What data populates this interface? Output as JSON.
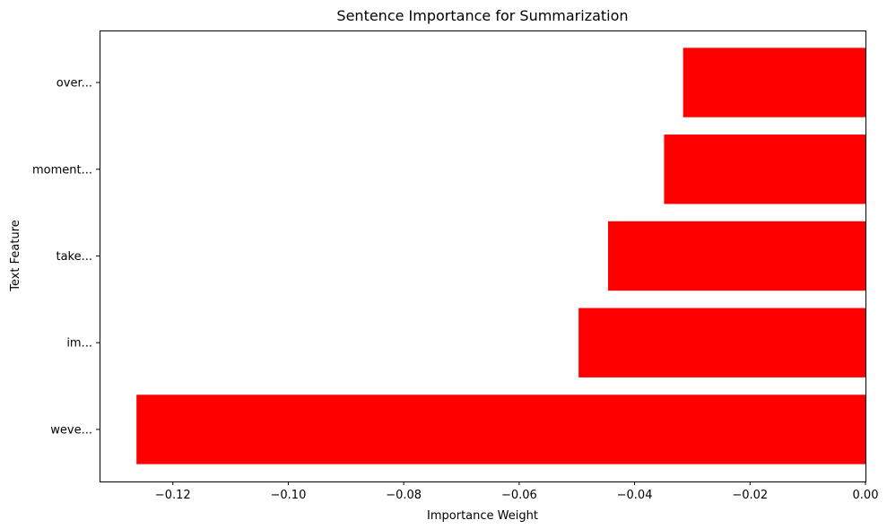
{
  "chart_data": {
    "type": "bar",
    "orientation": "horizontal",
    "title": "Sentence Importance for Summarization",
    "xlabel": "Importance Weight",
    "ylabel": "Text Feature",
    "categories": [
      "weve...",
      "im...",
      "take...",
      "moment...",
      "over..."
    ],
    "values": [
      -0.1263,
      -0.0497,
      -0.0446,
      -0.0349,
      -0.0316
    ],
    "xlim": [
      -0.1327,
      0.0
    ],
    "xticks": [
      -0.12,
      -0.1,
      -0.08,
      -0.06,
      -0.04,
      -0.02,
      0.0
    ],
    "xtick_labels": [
      "−0.12",
      "−0.10",
      "−0.08",
      "−0.06",
      "−0.04",
      "−0.02",
      "0.00"
    ],
    "bar_color": "#ff0000",
    "grid": false,
    "legend": "none"
  }
}
